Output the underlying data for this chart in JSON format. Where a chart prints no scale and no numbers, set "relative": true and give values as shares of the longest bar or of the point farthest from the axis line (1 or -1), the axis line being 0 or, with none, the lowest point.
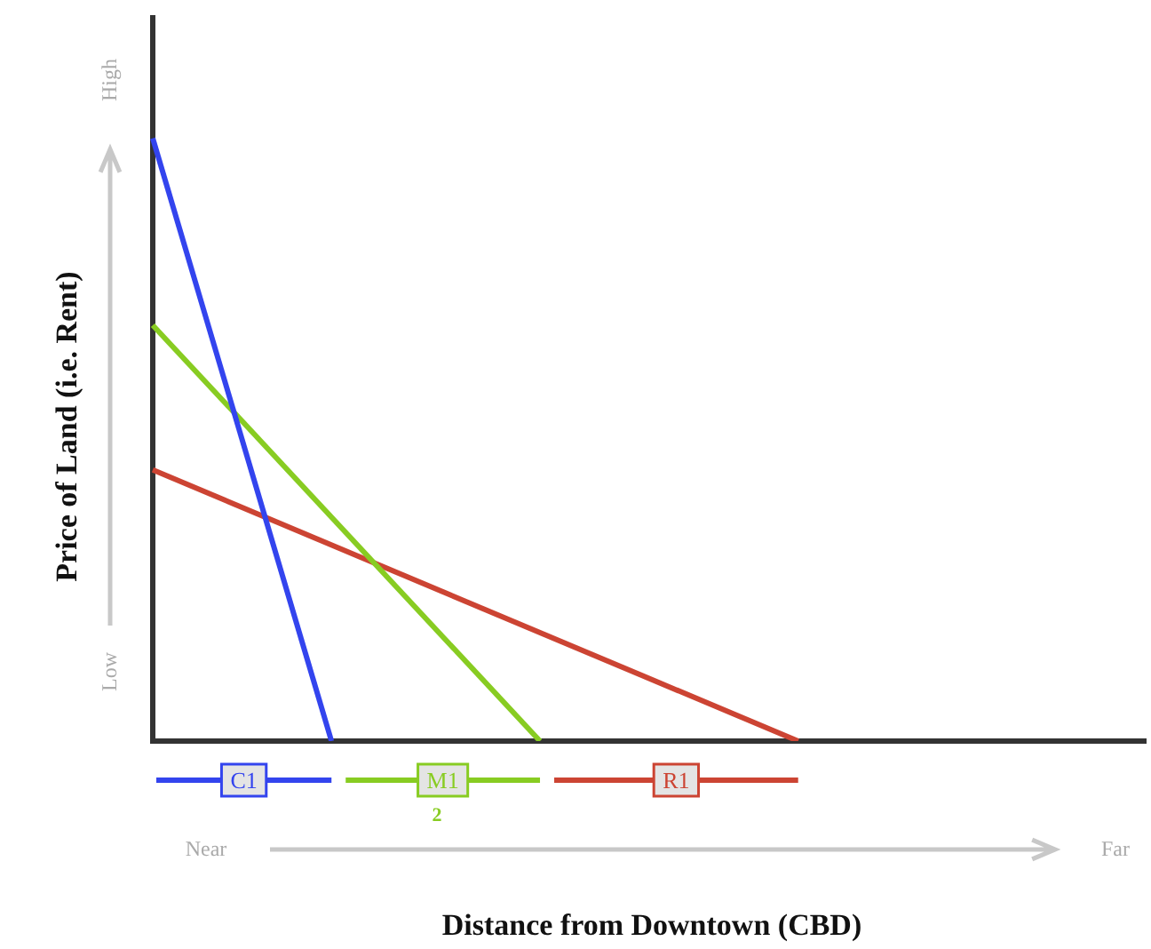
{
  "chart_data": {
    "type": "line",
    "relative": true,
    "ylabel": "Price of Land (i.e. Rent)",
    "categories": [
      null,
      null,
      null,
      null,
      null,
      null,
      null,
      null,
      null,
      null,
      null,
      null,
      null,
      null,
      null,
      null,
      null,
      null,
      null,
      null,
      null,
      null,
      null,
      null,
      null,
      null,
      null,
      null,
      null,
      null,
      null,
      null,
      null,
      null,
      null,
      null,
      null,
      null,
      null,
      null,
      null,
      null,
      null,
      null,
      null,
      null,
      null,
      null,
      null,
      null,
      null,
      null,
      null,
      null,
      null,
      null,
      null,
      null,
      null,
      null,
      null,
      null,
      null,
      null,
      null,
      null,
      null,
      null,
      null,
      null,
      null,
      null,
      null,
      null,
      null,
      null,
      null,
      null,
      null,
      null,
      null,
      null,
      null,
      null,
      null,
      null,
      null,
      null,
      null,
      null,
      null,
      null,
      null,
      null,
      null,
      null,
      null,
      null,
      null,
      null,
      null
    ],
    "series": [
      {
        "name": "C1",
        "color": "#3344ee",
        "values": [
          1,
          null,
          null,
          null,
          null,
          null,
          null,
          null,
          null,
          null,
          null,
          null,
          null,
          null,
          null,
          null,
          null,
          null,
          0,
          null,
          null,
          null,
          null,
          null,
          null,
          null,
          null,
          null,
          null,
          null,
          null,
          null,
          null,
          null,
          null,
          null,
          null,
          null,
          null,
          null,
          null,
          null,
          null,
          null,
          null,
          null,
          null,
          null,
          null,
          null,
          null,
          null,
          null,
          null,
          null,
          null,
          null,
          null,
          null,
          null,
          null,
          null,
          null,
          null,
          null,
          null,
          null,
          null,
          null,
          null,
          null,
          null,
          null,
          null,
          null,
          null,
          null,
          null,
          null,
          null,
          null,
          null,
          null,
          null,
          null,
          null,
          null,
          null,
          null,
          null,
          null,
          null,
          null,
          null,
          null,
          null,
          null,
          null,
          null,
          null,
          null
        ]
      },
      {
        "name": "M1",
        "color": "#88cc22",
        "values": [
          0.69,
          null,
          null,
          null,
          null,
          null,
          null,
          null,
          null,
          null,
          null,
          null,
          null,
          null,
          null,
          null,
          null,
          null,
          null,
          null,
          null,
          null,
          null,
          null,
          null,
          null,
          null,
          null,
          null,
          null,
          null,
          null,
          null,
          null,
          null,
          null,
          null,
          null,
          null,
          0,
          null,
          null,
          null,
          null,
          null,
          null,
          null,
          null,
          null,
          null,
          null,
          null,
          null,
          null,
          null,
          null,
          null,
          null,
          null,
          null,
          null,
          null,
          null,
          null,
          null,
          null,
          null,
          null,
          null,
          null,
          null,
          null,
          null,
          null,
          null,
          null,
          null,
          null,
          null,
          null,
          null,
          null,
          null,
          null,
          null,
          null,
          null,
          null,
          null,
          null,
          null,
          null,
          null,
          null,
          null,
          null,
          null,
          null,
          null,
          null,
          null
        ]
      },
      {
        "name": "R1",
        "color": "#cc4433",
        "values": [
          0.45,
          null,
          null,
          null,
          null,
          null,
          null,
          null,
          null,
          null,
          null,
          null,
          null,
          null,
          null,
          null,
          null,
          null,
          null,
          null,
          null,
          null,
          null,
          null,
          null,
          null,
          null,
          null,
          null,
          null,
          null,
          null,
          null,
          null,
          null,
          null,
          null,
          null,
          null,
          null,
          null,
          null,
          null,
          null,
          null,
          null,
          null,
          null,
          null,
          null,
          null,
          null,
          null,
          null,
          null,
          null,
          null,
          null,
          null,
          null,
          null,
          null,
          null,
          null,
          null,
          0,
          null,
          null,
          null,
          null,
          null,
          null,
          null,
          null,
          null,
          null,
          null,
          null,
          null,
          null,
          null,
          null,
          null,
          null,
          null,
          null,
          null,
          null,
          null,
          null,
          null,
          null,
          null,
          null,
          null,
          null,
          null,
          null,
          null,
          null,
          null
        ]
      }
    ],
    "annotations": [
      "High",
      "Low",
      "Near",
      "Far",
      "2",
      "Distance from Downtown (CBD)"
    ],
    "legend": "bottom",
    "grid": false,
    "marker": "none"
  }
}
